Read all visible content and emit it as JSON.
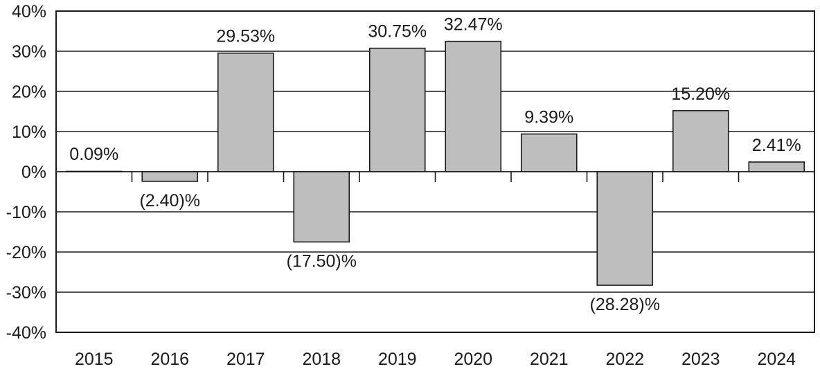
{
  "chart_data": {
    "type": "bar",
    "title": "",
    "xlabel": "",
    "ylabel": "",
    "categories": [
      "2015",
      "2016",
      "2017",
      "2018",
      "2019",
      "2020",
      "2021",
      "2022",
      "2023",
      "2024"
    ],
    "values": [
      0.09,
      -2.4,
      29.53,
      -17.5,
      30.75,
      32.47,
      9.39,
      -28.28,
      15.2,
      2.41
    ],
    "data_labels": [
      "0.09%",
      "(2.40)%",
      "29.53%",
      "(17.50)%",
      "30.75%",
      "32.47%",
      "9.39%",
      "(28.28)%",
      "15.20%",
      "2.41%"
    ],
    "ylim": [
      -40,
      40
    ],
    "yticks": [
      40,
      30,
      20,
      10,
      0,
      -10,
      -20,
      -30,
      -40
    ],
    "ytick_labels": [
      "40%",
      "30%",
      "20%",
      "10%",
      "0%",
      "-10%",
      "-20%",
      "-30%",
      "-40%"
    ],
    "grid": true,
    "legend": "none",
    "colors": {
      "bar": "#bebebe",
      "line": "#1a1a1a"
    }
  }
}
